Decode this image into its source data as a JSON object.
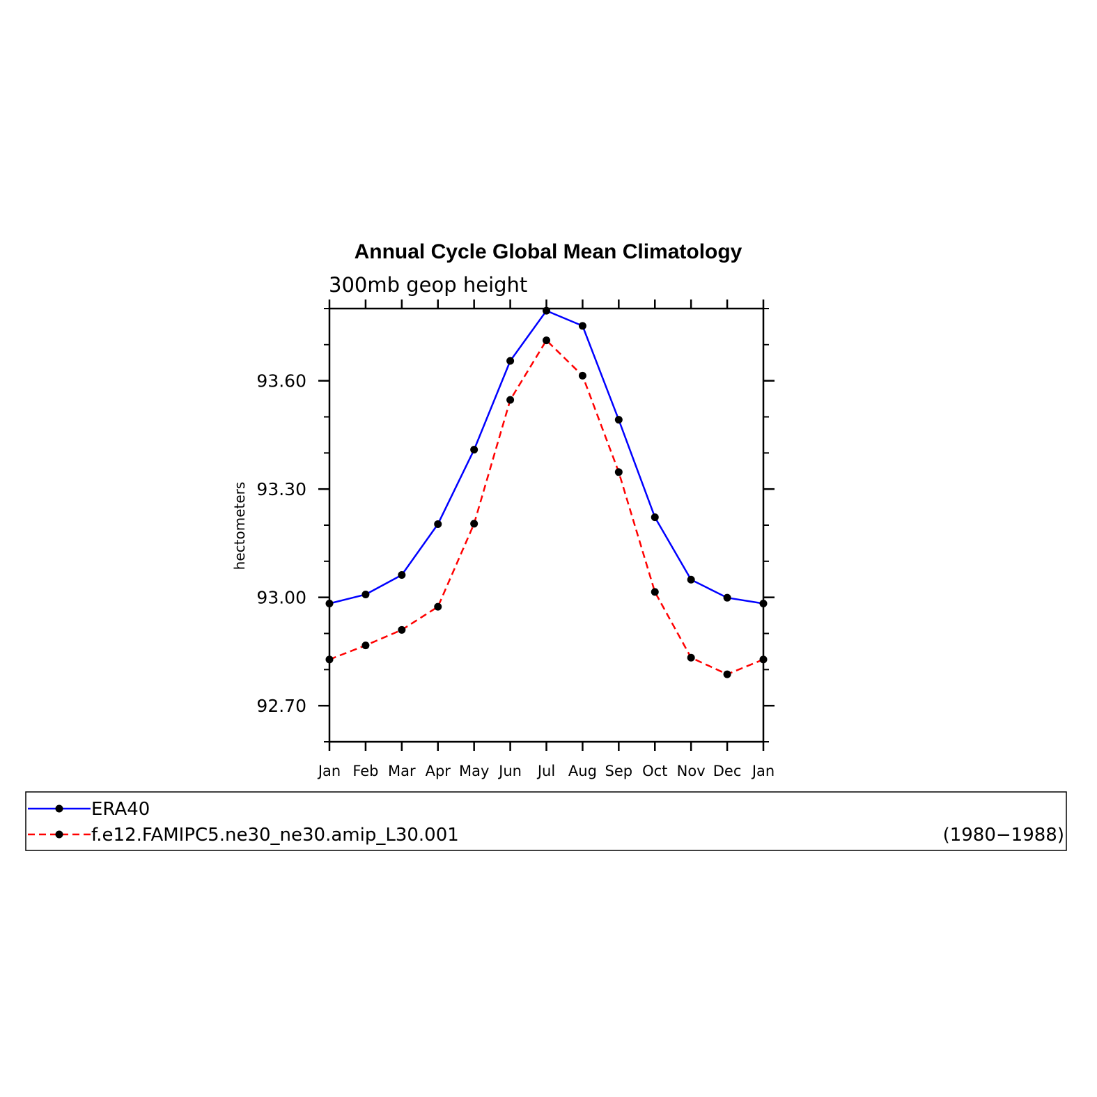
{
  "chart_data": {
    "type": "line",
    "title": "Annual Cycle Global Mean Climatology",
    "subtitle": "300mb geop height",
    "ylabel": "hectometers",
    "xlabel": "",
    "categories": [
      "Jan",
      "Feb",
      "Mar",
      "Apr",
      "May",
      "Jun",
      "Jul",
      "Aug",
      "Sep",
      "Oct",
      "Nov",
      "Dec",
      "Jan"
    ],
    "ylim": [
      92.6,
      93.8
    ],
    "yticks": [
      92.7,
      93.0,
      93.3,
      93.6
    ],
    "ytick_labels": [
      "92.70",
      "93.00",
      "93.30",
      "93.60"
    ],
    "grid": false,
    "legend_position": "bottom",
    "legend_note": "(1980−1988)",
    "series": [
      {
        "name": "ERA40",
        "color": "#0000ff",
        "dash": "solid",
        "values": [
          92.983,
          93.008,
          93.062,
          93.203,
          93.409,
          93.655,
          93.794,
          93.752,
          93.492,
          93.222,
          93.049,
          92.999,
          92.983
        ]
      },
      {
        "name": "f.e12.FAMIPC5.ne30_ne30.amip_L30.001",
        "color": "#ff0000",
        "dash": "dashed",
        "values": [
          92.828,
          92.867,
          92.91,
          92.974,
          93.204,
          93.547,
          93.712,
          93.614,
          93.347,
          93.015,
          92.833,
          92.787,
          92.828
        ]
      }
    ]
  }
}
